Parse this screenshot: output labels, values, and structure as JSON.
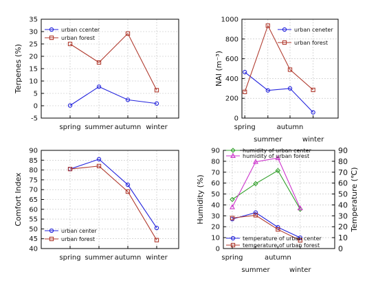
{
  "colors": {
    "urban_center": "#2222dd",
    "urban_forest": "#b03a2e",
    "humidity_forest": "#cc33cc",
    "humidity_center": "#33a02c"
  },
  "chart_data": [
    {
      "id": "terpenes",
      "type": "line",
      "categories": [
        "spring",
        "summer",
        "autumn",
        "winter"
      ],
      "category_rows": [
        0,
        0,
        0,
        0
      ],
      "ylabel": "Terpenes (%)",
      "ylim": [
        -5,
        35
      ],
      "yticks": [
        -5,
        0,
        5,
        10,
        15,
        20,
        25,
        30,
        35
      ],
      "grid": true,
      "legend_position": "top-left",
      "series": [
        {
          "name": "urban ccenter",
          "values": [
            0.1,
            7.7,
            2.4,
            0.9
          ],
          "marker": "circle",
          "color": "#2222dd",
          "axis": "left"
        },
        {
          "name": "urban forest",
          "values": [
            25,
            17.5,
            29.2,
            6.3
          ],
          "marker": "square",
          "color": "#b03a2e",
          "axis": "left"
        }
      ]
    },
    {
      "id": "nai",
      "type": "line",
      "categories": [
        "spring",
        "summer",
        "autumn",
        "winter"
      ],
      "category_rows": [
        0,
        1,
        0,
        1
      ],
      "ylabel": "NAI (m⁻³)",
      "ylim": [
        0,
        1000
      ],
      "yticks": [
        0,
        200,
        400,
        600,
        800,
        1000
      ],
      "grid": true,
      "legend_position": "top-right",
      "series": [
        {
          "name": "urban ceneter",
          "values": [
            465,
            280,
            300,
            58
          ],
          "marker": "circle",
          "color": "#2222dd",
          "axis": "left"
        },
        {
          "name": "urban forest",
          "values": [
            265,
            935,
            490,
            285
          ],
          "marker": "square",
          "color": "#b03a2e",
          "axis": "left"
        }
      ]
    },
    {
      "id": "comfort",
      "type": "line",
      "categories": [
        "spring",
        "summer",
        "autumn",
        "winter"
      ],
      "category_rows": [
        0,
        0,
        0,
        0
      ],
      "ylabel": "Comfort Index",
      "ylim": [
        40,
        90
      ],
      "yticks": [
        40,
        45,
        50,
        55,
        60,
        65,
        70,
        75,
        80,
        85,
        90
      ],
      "grid": true,
      "legend_position": "bottom-left",
      "series": [
        {
          "name": "urban center",
          "values": [
            80.5,
            85.5,
            72.5,
            50.5
          ],
          "marker": "circle",
          "color": "#2222dd",
          "axis": "left"
        },
        {
          "name": "urban forest",
          "values": [
            80.5,
            82,
            69,
            44.3
          ],
          "marker": "square",
          "color": "#b03a2e",
          "axis": "left"
        }
      ]
    },
    {
      "id": "humidity_temperature",
      "type": "line",
      "categories": [
        "spring",
        "summer",
        "autumn",
        "winter"
      ],
      "category_rows": [
        0,
        1,
        0,
        1
      ],
      "ylabel": "Humidity (%)",
      "ylim": [
        0,
        90
      ],
      "yticks": [
        0,
        10,
        20,
        30,
        40,
        50,
        60,
        70,
        80,
        90
      ],
      "y2label": "Temperature (℃)",
      "y2lim": [
        0,
        90
      ],
      "y2ticks": [
        0,
        10,
        20,
        30,
        40,
        50,
        60,
        70,
        80,
        90
      ],
      "grid": true,
      "legend_position": "top-left and bottom-left",
      "series": [
        {
          "name": "humidity of urban center",
          "values": [
            45,
            59.5,
            71.5,
            36
          ],
          "marker": "diamond",
          "color": "#33a02c",
          "axis": "left"
        },
        {
          "name": "humidity of urban forest",
          "values": [
            38,
            79.5,
            83,
            37
          ],
          "marker": "triangle",
          "color": "#cc33cc",
          "axis": "left"
        },
        {
          "name": "temperature of urban center",
          "values": [
            27,
            33,
            19.5,
            10
          ],
          "marker": "circle",
          "color": "#2222dd",
          "axis": "right"
        },
        {
          "name": "temperature of urban forest",
          "values": [
            28,
            30.5,
            17.5,
            7.5
          ],
          "marker": "square",
          "color": "#b03a2e",
          "axis": "right"
        }
      ]
    }
  ]
}
